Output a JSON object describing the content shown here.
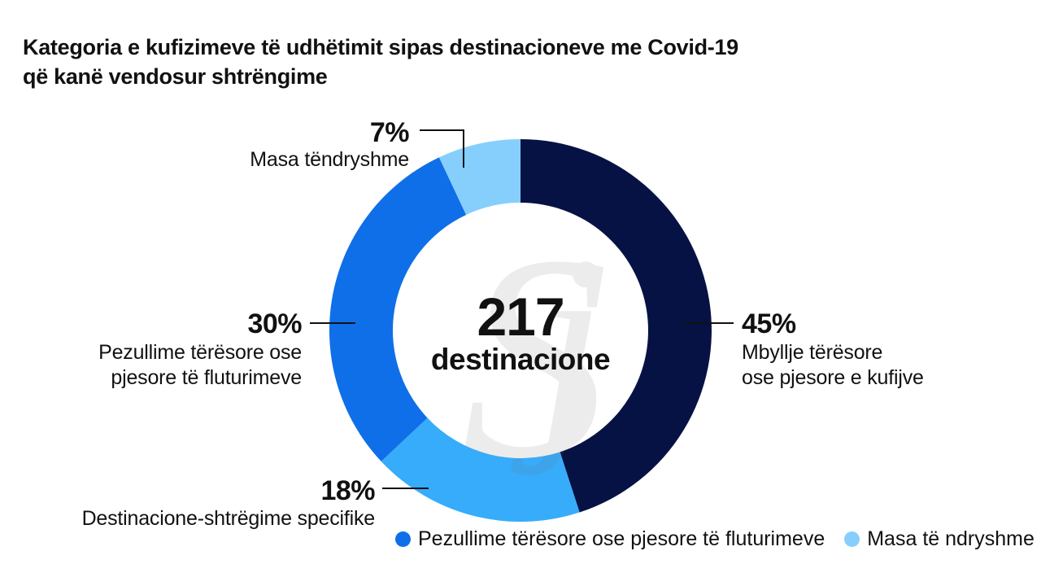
{
  "title": {
    "line1": "Kategoria e kufizimeve të udhëtimit sipas destinacioneve me Covid-19",
    "line2": "që kanë vendosur shtrëngime"
  },
  "center": {
    "value": "217",
    "label": "destinacione"
  },
  "legend": [
    {
      "label": "Pezullime tërësore ose pjesore të fluturimeve",
      "color": "#0f6fe8"
    },
    {
      "label": "Masa të ndryshme",
      "color": "#86cffd"
    }
  ],
  "chart_data": {
    "type": "pie",
    "variant": "donut",
    "total_label": "217 destinacione",
    "slices": [
      {
        "name": "Mbyllje tërësore ose pjesore e kufijve",
        "label_lines": [
          "Mbyllje tërësore",
          "ose pjesore e kufijve"
        ],
        "value": 45,
        "pct_label": "45%",
        "color": "#071244"
      },
      {
        "name": "Destinacione-shtrëgime specifike",
        "label_lines": [
          "Destinacione-shtrëgime specifike"
        ],
        "value": 18,
        "pct_label": "18%",
        "color": "#36acfb"
      },
      {
        "name": "Pezullime tërësore ose pjesore të fluturimeve",
        "label_lines": [
          "Pezullime tërësore ose",
          "pjesore të fluturimeve"
        ],
        "value": 30,
        "pct_label": "30%",
        "color": "#0f6fe8"
      },
      {
        "name": "Masa tëndryshme",
        "label_lines": [
          "Masa tëndryshme"
        ],
        "value": 7,
        "pct_label": "7%",
        "color": "#86cffd"
      }
    ]
  }
}
